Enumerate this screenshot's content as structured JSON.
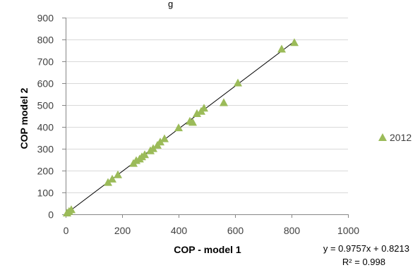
{
  "chart_data": {
    "type": "scatter",
    "title": "",
    "xlabel": "COP - model 1",
    "ylabel": "COP model 2",
    "xlim": [
      0,
      1000
    ],
    "ylim": [
      0,
      900
    ],
    "x_ticks": [
      0,
      200,
      400,
      600,
      800,
      1000
    ],
    "y_ticks": [
      0,
      100,
      200,
      300,
      400,
      500,
      600,
      700,
      800,
      900
    ],
    "grid": "horizontal major gridlines",
    "legend_position": "right",
    "series": [
      {
        "name": "2012",
        "marker": "triangle",
        "color": "#9bbb59",
        "points": [
          [
            5,
            5
          ],
          [
            12,
            12
          ],
          [
            20,
            20
          ],
          [
            150,
            145
          ],
          [
            165,
            160
          ],
          [
            185,
            180
          ],
          [
            240,
            232
          ],
          [
            250,
            245
          ],
          [
            262,
            252
          ],
          [
            270,
            262
          ],
          [
            280,
            272
          ],
          [
            300,
            290
          ],
          [
            310,
            300
          ],
          [
            325,
            315
          ],
          [
            335,
            330
          ],
          [
            350,
            345
          ],
          [
            400,
            395
          ],
          [
            440,
            425
          ],
          [
            450,
            420
          ],
          [
            465,
            460
          ],
          [
            480,
            470
          ],
          [
            490,
            485
          ],
          [
            560,
            510
          ],
          [
            610,
            600
          ],
          [
            765,
            755
          ],
          [
            810,
            785
          ]
        ]
      }
    ],
    "trendline": {
      "type": "linear",
      "slope": 0.9757,
      "intercept": 0.8213,
      "x_range": [
        0,
        810
      ],
      "color": "#000000"
    },
    "annotations": {
      "equation": "y = 0.9757x + 0.8213",
      "r_squared": "R² = 0.998"
    },
    "header_text": "g"
  }
}
